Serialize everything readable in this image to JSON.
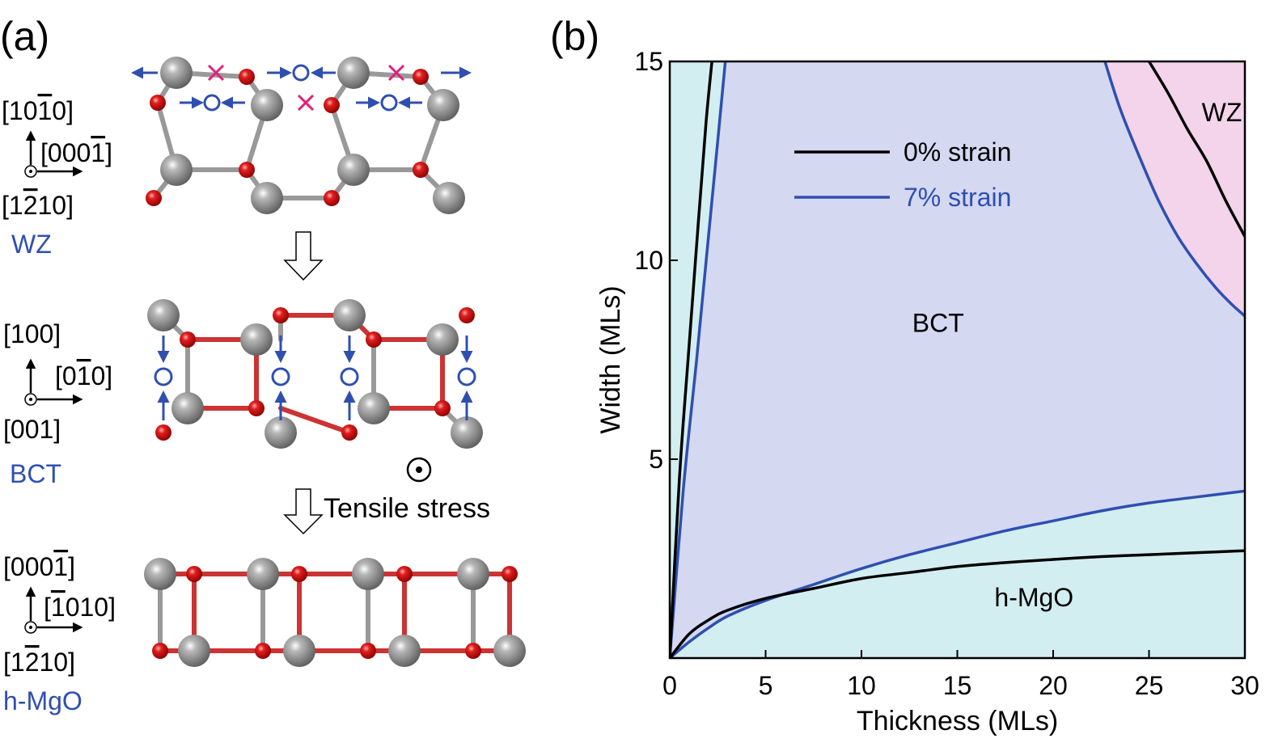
{
  "panel_a": {
    "label": "(a)",
    "rows": [
      {
        "phase_name": "WZ",
        "directions": {
          "up": "[1010]",
          "up_bar_index": 3,
          "right": "[0001]",
          "right_bar_index": 4,
          "out": "[1210]",
          "out_bar_index": 2
        }
      },
      {
        "phase_name": "BCT",
        "directions": {
          "up": "[100]",
          "up_bar_index": -1,
          "right": "[010]",
          "right_bar_index": 2,
          "out": "[001]",
          "out_bar_index": -1
        }
      },
      {
        "phase_name": "h-MgO",
        "directions": {
          "up": "[0001]",
          "up_bar_index": 4,
          "right": "[1010]",
          "right_bar_index": 1,
          "out": "[1210]",
          "out_bar_index": 2
        }
      }
    ],
    "tensile_label": "Tensile stress"
  },
  "panel_b": {
    "label": "(b)"
  },
  "chart_data": {
    "type": "line",
    "xlabel": "Thickness (MLs)",
    "ylabel": "Width (MLs)",
    "xlim": [
      0,
      30
    ],
    "ylim": [
      0,
      15
    ],
    "xticks": [
      0,
      5,
      10,
      15,
      20,
      25,
      30
    ],
    "yticks": [
      5,
      10,
      15
    ],
    "regions": [
      {
        "label": "BCT",
        "at": [
          14,
          8.2
        ]
      },
      {
        "label": "h-MgO",
        "at": [
          19,
          1.3
        ]
      },
      {
        "label": "WZ",
        "at": [
          28.8,
          13.5
        ]
      }
    ],
    "legend": {
      "placement": "top-center",
      "entries": [
        {
          "name": "0% strain",
          "color": "#000000"
        },
        {
          "name": "7% strain",
          "color": "#2f4fb0"
        }
      ]
    },
    "colors": {
      "hmgo_fill": "#d3eef0",
      "bct_fill": "#d4d8f1",
      "wz_fill": "#f4d4ea"
    },
    "series": [
      {
        "name": "0% strain",
        "color": "#000000",
        "curves": {
          "hmgo_bct": [
            [
              0,
              0
            ],
            [
              1,
              0.6
            ],
            [
              2,
              0.95
            ],
            [
              3,
              1.2
            ],
            [
              5,
              1.5
            ],
            [
              7.5,
              1.75
            ],
            [
              10,
              2.0
            ],
            [
              12.5,
              2.15
            ],
            [
              15,
              2.3
            ],
            [
              17.5,
              2.4
            ],
            [
              20,
              2.48
            ],
            [
              22.5,
              2.55
            ],
            [
              25,
              2.6
            ],
            [
              27.5,
              2.65
            ],
            [
              30,
              2.7
            ]
          ],
          "bct_wz_left": [
            [
              0,
              0
            ],
            [
              0.5,
              4.5
            ],
            [
              1.0,
              7.8
            ],
            [
              1.5,
              11.0
            ],
            [
              1.9,
              13.5
            ],
            [
              2.2,
              15
            ]
          ],
          "bct_wz_right": [
            [
              25.0,
              15
            ],
            [
              26.0,
              14.2
            ],
            [
              27.0,
              13.3
            ],
            [
              28.0,
              12.5
            ],
            [
              29.0,
              11.5
            ],
            [
              30,
              10.6
            ]
          ]
        }
      },
      {
        "name": "7% strain",
        "color": "#2f4fb0",
        "curves": {
          "hmgo_bct": [
            [
              0,
              0
            ],
            [
              1,
              0.4
            ],
            [
              2,
              0.75
            ],
            [
              3,
              1.05
            ],
            [
              5,
              1.45
            ],
            [
              7.5,
              1.85
            ],
            [
              10,
              2.25
            ],
            [
              12.5,
              2.6
            ],
            [
              15,
              2.9
            ],
            [
              17.5,
              3.2
            ],
            [
              20,
              3.45
            ],
            [
              22.5,
              3.7
            ],
            [
              25,
              3.9
            ],
            [
              27.5,
              4.05
            ],
            [
              30,
              4.2
            ]
          ],
          "bct_wz_left": [
            [
              0,
              0
            ],
            [
              0.7,
              4.2
            ],
            [
              1.4,
              7.5
            ],
            [
              2.0,
              10.5
            ],
            [
              2.5,
              13.0
            ],
            [
              2.9,
              15
            ]
          ],
          "bct_wz_right": [
            [
              22.7,
              15
            ],
            [
              23.5,
              13.8
            ],
            [
              24.5,
              12.6
            ],
            [
              25.5,
              11.5
            ],
            [
              26.5,
              10.6
            ],
            [
              27.5,
              9.9
            ],
            [
              28.5,
              9.3
            ],
            [
              29.3,
              8.9
            ],
            [
              30,
              8.6
            ]
          ]
        }
      }
    ]
  }
}
